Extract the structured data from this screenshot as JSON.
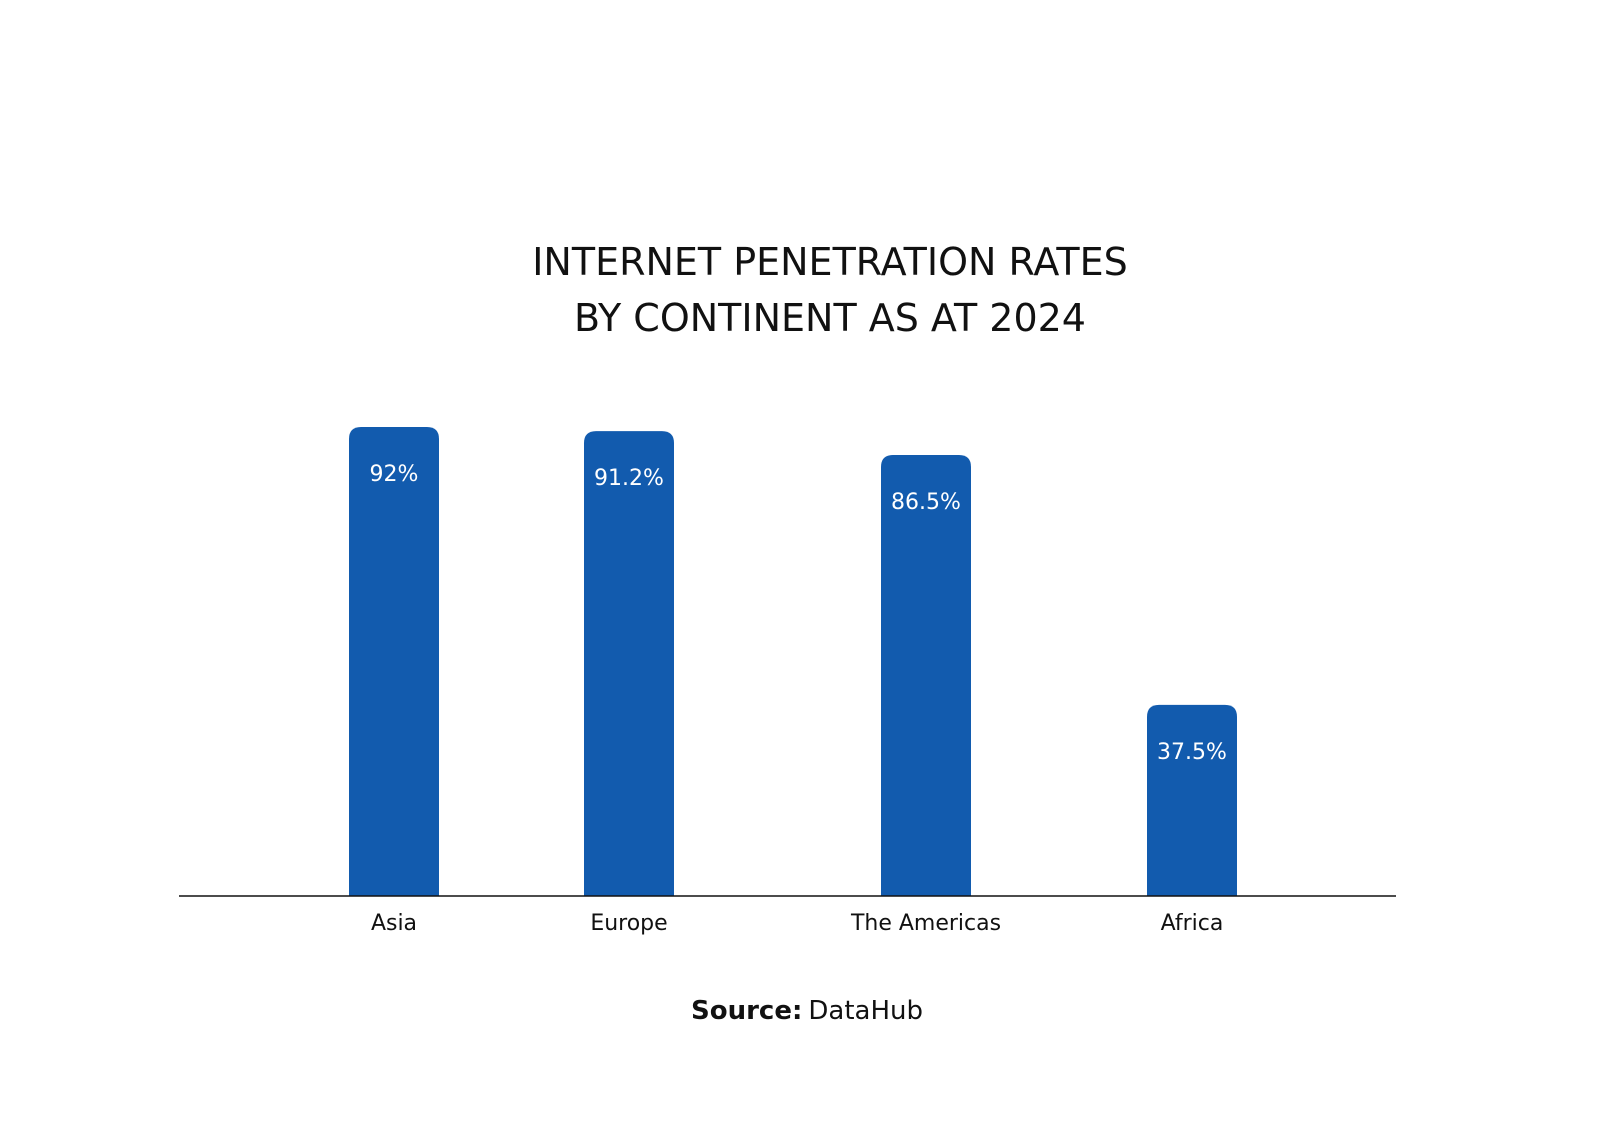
{
  "chart_data": {
    "type": "bar",
    "title_lines": [
      "INTERNET PENETRATION RATES",
      "BY CONTINENT AS AT 2024"
    ],
    "categories": [
      "Asia",
      "Europe",
      "The Americas",
      "Africa"
    ],
    "values": [
      92,
      91.2,
      86.5,
      37.5
    ],
    "value_labels": [
      "92%",
      "91.2%",
      "86.5%",
      "37.5%"
    ],
    "xlabel": "",
    "ylabel": "",
    "ylim": [
      0,
      100
    ],
    "grid": false,
    "legend": "none",
    "colors": {
      "bar": "#125BAE",
      "axis": "#111111",
      "value_text": "#ffffff"
    }
  },
  "source": {
    "label": "Source:",
    "value": "DataHub"
  }
}
